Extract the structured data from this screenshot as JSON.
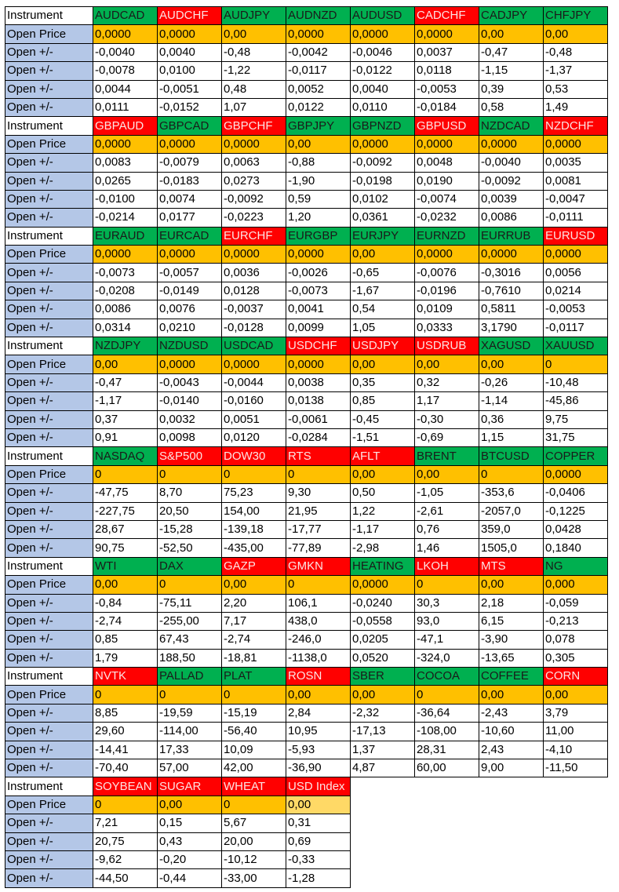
{
  "labels": {
    "instrument": "Instrument",
    "open_price": "Open Price",
    "open_delta": "Open +/-"
  },
  "colors": {
    "up": "#00b050",
    "down": "#ff0000",
    "open_price": "#ffc000",
    "row_label": "#b4c7e7"
  },
  "blocks": [
    {
      "instruments": [
        {
          "name": "AUDCAD",
          "dir": "up"
        },
        {
          "name": "AUDCHF",
          "dir": "down"
        },
        {
          "name": "AUDJPY",
          "dir": "up"
        },
        {
          "name": "AUDNZD",
          "dir": "up"
        },
        {
          "name": "AUDUSD",
          "dir": "up"
        },
        {
          "name": "CADCHF",
          "dir": "down"
        },
        {
          "name": "CADJPY",
          "dir": "up"
        },
        {
          "name": "CHFJPY",
          "dir": "up"
        }
      ],
      "open_price": [
        "0,0000",
        "0,0000",
        "0,00",
        "0,0000",
        "0,0000",
        "0,0000",
        "0,00",
        "0,00"
      ],
      "open_deltas": [
        [
          "-0,0040",
          "0,0040",
          "-0,48",
          "-0,0042",
          "-0,0046",
          "0,0037",
          "-0,47",
          "-0,48"
        ],
        [
          "-0,0078",
          "0,0100",
          "-1,22",
          "-0,0117",
          "-0,0122",
          "0,0118",
          "-1,15",
          "-1,37"
        ],
        [
          "0,0044",
          "-0,0051",
          "0,48",
          "0,0052",
          "0,0040",
          "-0,0053",
          "0,39",
          "0,53"
        ],
        [
          "0,0111",
          "-0,0152",
          "1,07",
          "0,0122",
          "0,0110",
          "-0,0184",
          "0,58",
          "1,49"
        ]
      ]
    },
    {
      "instruments": [
        {
          "name": "GBPAUD",
          "dir": "down"
        },
        {
          "name": "GBPCAD",
          "dir": "up"
        },
        {
          "name": "GBPCHF",
          "dir": "down"
        },
        {
          "name": "GBPJPY",
          "dir": "up"
        },
        {
          "name": "GBPNZD",
          "dir": "up"
        },
        {
          "name": "GBPUSD",
          "dir": "down"
        },
        {
          "name": "NZDCAD",
          "dir": "up"
        },
        {
          "name": "NZDCHF",
          "dir": "down"
        }
      ],
      "open_price": [
        "0,0000",
        "0,0000",
        "0,0000",
        "0,00",
        "0,0000",
        "0,0000",
        "0,0000",
        "0,0000"
      ],
      "open_deltas": [
        [
          "0,0083",
          "-0,0079",
          "0,0063",
          "-0,88",
          "-0,0092",
          "0,0048",
          "-0,0040",
          "0,0035"
        ],
        [
          "0,0265",
          "-0,0183",
          "0,0273",
          "-1,90",
          "-0,0198",
          "0,0190",
          "-0,0092",
          "0,0081"
        ],
        [
          "-0,0100",
          "0,0074",
          "-0,0092",
          "0,59",
          "0,0102",
          "-0,0074",
          "0,0039",
          "-0,0047"
        ],
        [
          "-0,0214",
          "0,0177",
          "-0,0223",
          "1,20",
          "0,0361",
          "-0,0232",
          "0,0086",
          "-0,0111"
        ]
      ]
    },
    {
      "instruments": [
        {
          "name": "EURAUD",
          "dir": "up"
        },
        {
          "name": "EURCAD",
          "dir": "up"
        },
        {
          "name": "EURCHF",
          "dir": "down"
        },
        {
          "name": "EURGBP",
          "dir": "up"
        },
        {
          "name": "EURJPY",
          "dir": "up"
        },
        {
          "name": "EURNZD",
          "dir": "up"
        },
        {
          "name": "EURRUB",
          "dir": "up"
        },
        {
          "name": "EURUSD",
          "dir": "down"
        }
      ],
      "open_price": [
        "0,0000",
        "0,0000",
        "0,0000",
        "0,0000",
        "0,00",
        "0,0000",
        "0,0000",
        "0,0000"
      ],
      "open_deltas": [
        [
          "-0,0073",
          "-0,0057",
          "0,0036",
          "-0,0026",
          "-0,65",
          "-0,0076",
          "-0,3016",
          "0,0056"
        ],
        [
          "-0,0208",
          "-0,0149",
          "0,0128",
          "-0,0073",
          "-1,67",
          "-0,0196",
          "-0,7610",
          "0,0214"
        ],
        [
          "0,0086",
          "0,0076",
          "-0,0037",
          "0,0041",
          "0,54",
          "0,0109",
          "0,5811",
          "-0,0053"
        ],
        [
          "0,0314",
          "0,0210",
          "-0,0128",
          "0,0099",
          "1,05",
          "0,0333",
          "3,1790",
          "-0,0117"
        ]
      ]
    },
    {
      "instruments": [
        {
          "name": "NZDJPY",
          "dir": "up"
        },
        {
          "name": "NZDUSD",
          "dir": "up"
        },
        {
          "name": "USDCAD",
          "dir": "up"
        },
        {
          "name": "USDCHF",
          "dir": "down"
        },
        {
          "name": "USDJPY",
          "dir": "down"
        },
        {
          "name": "USDRUB",
          "dir": "down"
        },
        {
          "name": "XAGUSD",
          "dir": "up"
        },
        {
          "name": "XAUUSD",
          "dir": "up"
        }
      ],
      "open_price": [
        "0,00",
        "0,0000",
        "0,0000",
        "0,0000",
        "0,00",
        "0,00",
        "0,00",
        "0"
      ],
      "open_deltas": [
        [
          "-0,47",
          "-0,0043",
          "-0,0044",
          "0,0038",
          "0,35",
          "0,32",
          "-0,26",
          "-10,48"
        ],
        [
          "-1,17",
          "-0,0140",
          "-0,0160",
          "0,0138",
          "0,85",
          "1,17",
          "-1,14",
          "-45,86"
        ],
        [
          "0,37",
          "0,0032",
          "0,0051",
          "-0,0061",
          "-0,45",
          "-0,30",
          "0,36",
          "9,75"
        ],
        [
          "0,91",
          "0,0098",
          "0,0120",
          "-0,0284",
          "-1,51",
          "-0,69",
          "1,15",
          "31,75"
        ]
      ]
    },
    {
      "instruments": [
        {
          "name": "NASDAQ",
          "dir": "up"
        },
        {
          "name": "S&P500",
          "dir": "down"
        },
        {
          "name": "DOW30",
          "dir": "down"
        },
        {
          "name": "RTS",
          "dir": "down"
        },
        {
          "name": "AFLT",
          "dir": "down"
        },
        {
          "name": "BRENT",
          "dir": "up"
        },
        {
          "name": "BTCUSD",
          "dir": "up"
        },
        {
          "name": "COPPER",
          "dir": "up"
        }
      ],
      "open_price": [
        "0",
        "0",
        "0",
        "0",
        "0,00",
        "0,00",
        "0",
        "0,0000"
      ],
      "open_deltas": [
        [
          "-47,75",
          "8,70",
          "75,23",
          "9,30",
          "0,50",
          "-1,05",
          "-353,6",
          "-0,0406"
        ],
        [
          "-227,75",
          "20,50",
          "154,00",
          "21,95",
          "1,22",
          "-2,61",
          "-2057,0",
          "-0,1225"
        ],
        [
          "28,67",
          "-15,28",
          "-139,18",
          "-17,77",
          "-1,17",
          "0,76",
          "359,0",
          "0,0428"
        ],
        [
          "90,75",
          "-52,50",
          "-435,00",
          "-77,89",
          "-2,98",
          "1,46",
          "1505,0",
          "0,1840"
        ]
      ]
    },
    {
      "instruments": [
        {
          "name": "WTI",
          "dir": "up"
        },
        {
          "name": "DAX",
          "dir": "up"
        },
        {
          "name": "GAZP",
          "dir": "down"
        },
        {
          "name": "GMKN",
          "dir": "down"
        },
        {
          "name": "HEATING",
          "dir": "up"
        },
        {
          "name": "LKOH",
          "dir": "down"
        },
        {
          "name": "MTS",
          "dir": "down"
        },
        {
          "name": "NG",
          "dir": "up"
        }
      ],
      "open_price": [
        "0,00",
        "0",
        "0,00",
        "0",
        "0,0000",
        "0",
        "0,00",
        "0,000"
      ],
      "open_deltas": [
        [
          "-0,84",
          "-75,11",
          "2,20",
          "106,1",
          "-0,0240",
          "30,3",
          "2,18",
          "-0,059"
        ],
        [
          "-2,74",
          "-255,00",
          "7,17",
          "438,0",
          "-0,0558",
          "93,0",
          "6,15",
          "-0,213"
        ],
        [
          "0,85",
          "67,43",
          "-2,74",
          "-246,0",
          "0,0205",
          "-47,1",
          "-3,90",
          "0,078"
        ],
        [
          "1,79",
          "188,50",
          "-18,81",
          "-1138,0",
          "0,0520",
          "-324,0",
          "-13,65",
          "0,305"
        ]
      ]
    },
    {
      "instruments": [
        {
          "name": "NVTK",
          "dir": "down"
        },
        {
          "name": "PALLAD",
          "dir": "up"
        },
        {
          "name": "PLAT",
          "dir": "up"
        },
        {
          "name": "ROSN",
          "dir": "down"
        },
        {
          "name": "SBER",
          "dir": "up"
        },
        {
          "name": "COCOA",
          "dir": "up"
        },
        {
          "name": "COFFEE",
          "dir": "up"
        },
        {
          "name": "CORN",
          "dir": "down"
        }
      ],
      "open_price": [
        "0",
        "0",
        "0",
        "0,00",
        "0,00",
        "0",
        "0,00",
        "0,00"
      ],
      "open_deltas": [
        [
          "8,85",
          "-19,59",
          "-15,19",
          "2,84",
          "-2,32",
          "-36,64",
          "-2,43",
          "3,79"
        ],
        [
          "29,60",
          "-114,00",
          "-56,40",
          "10,95",
          "-17,13",
          "-108,00",
          "-10,60",
          "11,00"
        ],
        [
          "-14,41",
          "17,33",
          "10,09",
          "-5,93",
          "1,37",
          "28,31",
          "2,43",
          "-4,10"
        ],
        [
          "-70,40",
          "57,00",
          "42,00",
          "-36,90",
          "4,87",
          "60,00",
          "9,00",
          "-11,50"
        ]
      ]
    },
    {
      "instruments": [
        {
          "name": "SOYBEAN",
          "dir": "down"
        },
        {
          "name": "SUGAR",
          "dir": "down"
        },
        {
          "name": "WHEAT",
          "dir": "down"
        },
        {
          "name": "USD Index",
          "dir": "down"
        }
      ],
      "open_price": [
        "0",
        "0,00",
        "0",
        "0,00"
      ],
      "open_deltas": [
        [
          "7,21",
          "0,15",
          "5,67",
          "0,31"
        ],
        [
          "20,75",
          "0,43",
          "20,00",
          "0,69"
        ],
        [
          "-9,62",
          "-0,20",
          "-10,12",
          "-0,33"
        ],
        [
          "-44,50",
          "-0,44",
          "-33,00",
          "-1,28"
        ]
      ]
    }
  ]
}
